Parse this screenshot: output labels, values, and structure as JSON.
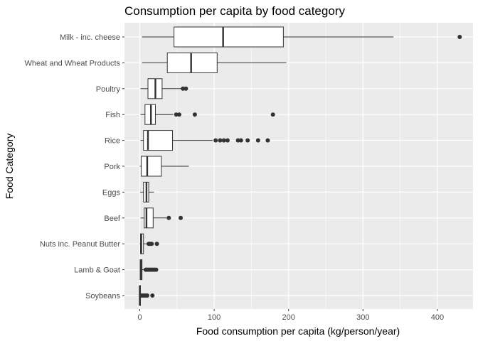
{
  "chart_data": {
    "type": "boxplot",
    "orientation": "horizontal",
    "title": "Consumption per capita by food category",
    "xlabel": "Food consumption per capita (kg/person/year)",
    "ylabel": "Food Category",
    "xlim": [
      -20,
      450
    ],
    "x_ticks": [
      0,
      100,
      200,
      300,
      400
    ],
    "x_tick_labels": [
      "0",
      "100",
      "200",
      "300",
      "400"
    ],
    "grid": true,
    "legend": "none",
    "colors": {
      "panel": "#ebebeb",
      "grid": "#ffffff",
      "box_fill": "#ffffff",
      "box_line": "#333333",
      "point": "#333333"
    },
    "categories": [
      "Milk - inc. cheese",
      "Wheat and Wheat Products",
      "Poultry",
      "Fish",
      "Rice",
      "Pork",
      "Eggs",
      "Beef",
      "Nuts inc. Peanut Butter",
      "Lamb & Goat",
      "Soybeans"
    ],
    "boxes": [
      {
        "category": "Milk - inc. cheese",
        "whisker_low": 3,
        "q1": 46,
        "median": 112,
        "q3": 193,
        "whisker_high": 341,
        "outliers": [
          430
        ]
      },
      {
        "category": "Wheat and Wheat Products",
        "whisker_low": 3,
        "q1": 37,
        "median": 69,
        "q3": 104,
        "whisker_high": 197,
        "outliers": []
      },
      {
        "category": "Poultry",
        "whisker_low": 1,
        "q1": 11,
        "median": 21,
        "q3": 30,
        "whisker_high": 56,
        "outliers": [
          58,
          62
        ]
      },
      {
        "category": "Fish",
        "whisker_low": 1,
        "q1": 7,
        "median": 15,
        "q3": 21,
        "whisker_high": 45,
        "outliers": [
          49,
          53,
          74,
          179
        ]
      },
      {
        "category": "Rice",
        "whisker_low": 1,
        "q1": 5,
        "median": 11,
        "q3": 44,
        "whisker_high": 98,
        "outliers": [
          102,
          108,
          113,
          118,
          132,
          136,
          145,
          159,
          172
        ]
      },
      {
        "category": "Pork",
        "whisker_low": 0,
        "q1": 2,
        "median": 10,
        "q3": 29,
        "whisker_high": 66,
        "outliers": []
      },
      {
        "category": "Eggs",
        "whisker_low": 0.5,
        "q1": 5,
        "median": 9,
        "q3": 12,
        "whisker_high": 19,
        "outliers": []
      },
      {
        "category": "Beef",
        "whisker_low": 1,
        "q1": 6,
        "median": 9,
        "q3": 18,
        "whisker_high": 36,
        "outliers": [
          39,
          55
        ]
      },
      {
        "category": "Nuts inc. Peanut Butter",
        "whisker_low": 0,
        "q1": 1,
        "median": 2,
        "q3": 5,
        "whisker_high": 11,
        "outliers": [
          12,
          14,
          16,
          23
        ]
      },
      {
        "category": "Lamb & Goat",
        "whisker_low": 0,
        "q1": 0.5,
        "median": 1.5,
        "q3": 3,
        "whisker_high": 7,
        "outliers": [
          8,
          10,
          12,
          14,
          16,
          18,
          20,
          22
        ]
      },
      {
        "category": "Soybeans",
        "whisker_low": 0,
        "q1": 0,
        "median": 0,
        "q3": 0.5,
        "whisker_high": 1,
        "outliers": [
          2,
          4,
          6,
          8,
          10,
          17
        ]
      }
    ]
  }
}
